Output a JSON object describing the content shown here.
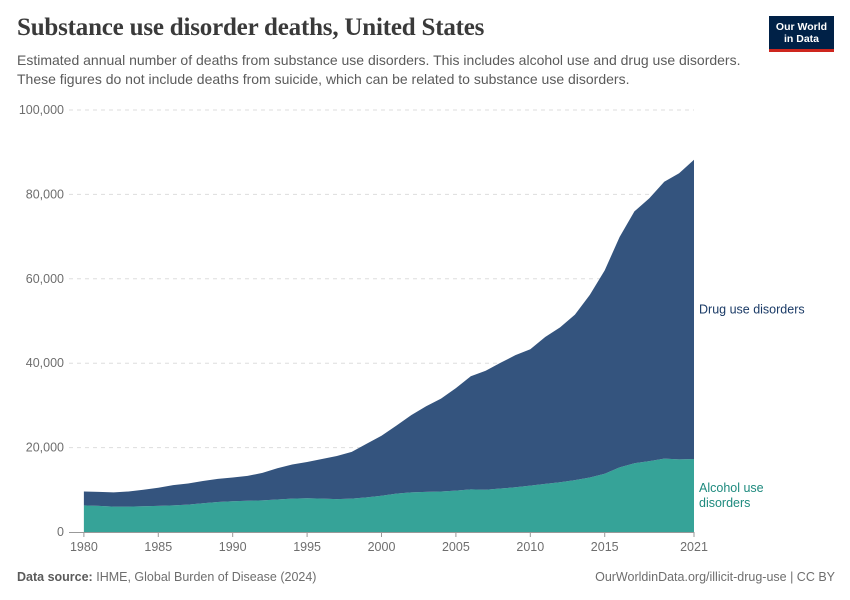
{
  "header": {
    "title": "Substance use disorder deaths, United States",
    "subtitle": "Estimated annual number of deaths from substance use disorders. This includes alcohol use and drug use disorders. These figures do not include deaths from suicide, which can be related to substance use disorders."
  },
  "logo": {
    "line1": "Our World",
    "line2": "in Data",
    "bg": "#002147",
    "accent": "#ce261e"
  },
  "footer": {
    "source_label": "Data source:",
    "source_text": "IHME, Global Burden of Disease (2024)",
    "link_text": "OurWorldinData.org/illicit-drug-use | CC BY"
  },
  "chart_data": {
    "type": "area",
    "stacked": true,
    "x": [
      1980,
      1981,
      1982,
      1983,
      1984,
      1985,
      1986,
      1987,
      1988,
      1989,
      1990,
      1991,
      1992,
      1993,
      1994,
      1995,
      1996,
      1997,
      1998,
      1999,
      2000,
      2001,
      2002,
      2003,
      2004,
      2005,
      2006,
      2007,
      2008,
      2009,
      2010,
      2011,
      2012,
      2013,
      2014,
      2015,
      2016,
      2017,
      2018,
      2019,
      2020,
      2021
    ],
    "xlim": [
      1979,
      2021
    ],
    "ylim": [
      0,
      100000
    ],
    "y_ticks": [
      0,
      20000,
      40000,
      60000,
      80000,
      100000
    ],
    "y_tick_labels": [
      "0",
      "20,000",
      "40,000",
      "60,000",
      "80,000",
      "100,000"
    ],
    "x_ticks": [
      1980,
      1985,
      1990,
      1995,
      2000,
      2005,
      2010,
      2015,
      2021
    ],
    "grid": "horizontal dashed",
    "series": [
      {
        "name": "Alcohol use disorders",
        "color": "#36a398",
        "label_color": "#1e8a7e",
        "label_lines": [
          "Alcohol use",
          "disorders"
        ],
        "values": [
          6300,
          6200,
          6000,
          6000,
          6100,
          6200,
          6300,
          6500,
          6800,
          7100,
          7300,
          7400,
          7500,
          7700,
          7900,
          8000,
          7900,
          7800,
          7900,
          8200,
          8600,
          9100,
          9400,
          9500,
          9600,
          9800,
          10100,
          10000,
          10300,
          10600,
          11000,
          11400,
          11800,
          12300,
          12900,
          13800,
          15300,
          16300,
          16800,
          17400,
          17200,
          17300
        ]
      },
      {
        "name": "Drug use disorders",
        "color": "#34547e",
        "label_color": "#1a3a66",
        "label_lines": [
          "Drug use disorders"
        ],
        "values": [
          3300,
          3300,
          3400,
          3600,
          3900,
          4300,
          4800,
          5000,
          5300,
          5500,
          5600,
          5900,
          6500,
          7400,
          8100,
          8600,
          9400,
          10200,
          11100,
          12700,
          14200,
          16100,
          18300,
          20300,
          22000,
          24300,
          26800,
          28200,
          29800,
          31300,
          32300,
          34800,
          36700,
          39200,
          43300,
          48200,
          54600,
          59700,
          62300,
          65600,
          67800,
          70900
        ]
      }
    ]
  }
}
